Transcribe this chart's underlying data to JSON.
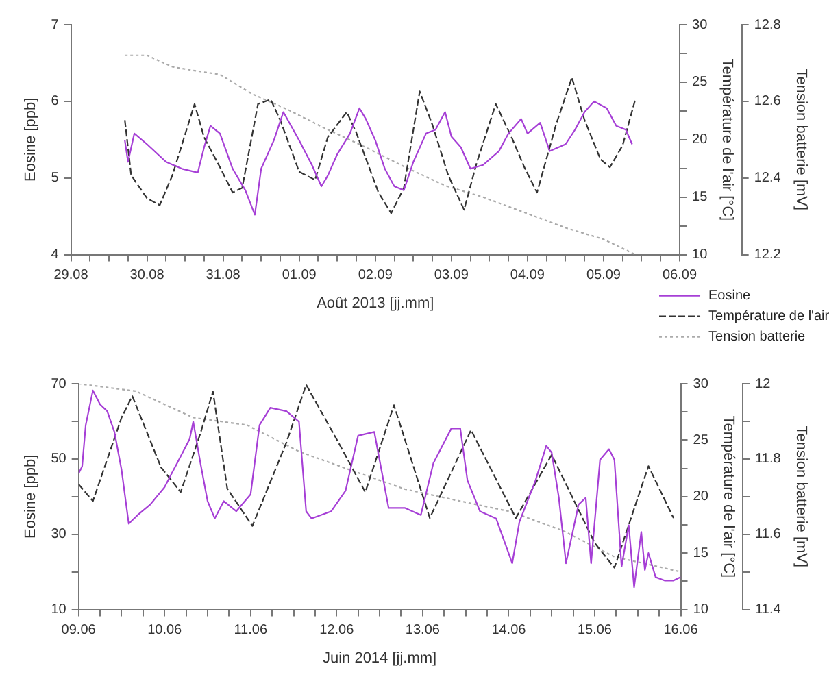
{
  "chart_data": [
    {
      "type": "line",
      "xlabel": "Août 2013 [jj.mm]",
      "ylabel": "Eosine [ppb]",
      "y2label": "Température de l'air [°C]",
      "y3label": "Tension batterie [mV]",
      "xlim": [
        "2013-08-29",
        "2013-09-06"
      ],
      "xticks": [
        {
          "value": "2013-08-29",
          "label": "29.08"
        },
        {
          "value": "2013-08-29T06:00",
          "label": null
        },
        {
          "value": "2013-08-29T12:00",
          "label": null
        },
        {
          "value": "2013-08-29T18:00",
          "label": null
        },
        {
          "value": "2013-08-30",
          "label": "30.08"
        },
        {
          "value": "2013-08-30T06:00",
          "label": null
        },
        {
          "value": "2013-08-30T12:00",
          "label": null
        },
        {
          "value": "2013-08-30T18:00",
          "label": null
        },
        {
          "value": "2013-08-31",
          "label": "31.08"
        },
        {
          "value": "2013-08-31T06:00",
          "label": null
        },
        {
          "value": "2013-08-31T12:00",
          "label": null
        },
        {
          "value": "2013-08-31T18:00",
          "label": null
        },
        {
          "value": "2013-09-01",
          "label": "01.09"
        },
        {
          "value": "2013-09-01T06:00",
          "label": null
        },
        {
          "value": "2013-09-01T12:00",
          "label": null
        },
        {
          "value": "2013-09-01T18:00",
          "label": null
        },
        {
          "value": "2013-09-02",
          "label": "02.09"
        },
        {
          "value": "2013-09-02T06:00",
          "label": null
        },
        {
          "value": "2013-09-02T12:00",
          "label": null
        },
        {
          "value": "2013-09-02T18:00",
          "label": null
        },
        {
          "value": "2013-09-03",
          "label": "03.09"
        },
        {
          "value": "2013-09-03T06:00",
          "label": null
        },
        {
          "value": "2013-09-03T12:00",
          "label": null
        },
        {
          "value": "2013-09-03T18:00",
          "label": null
        },
        {
          "value": "2013-09-04",
          "label": "04.09"
        },
        {
          "value": "2013-09-04T06:00",
          "label": null
        },
        {
          "value": "2013-09-04T12:00",
          "label": null
        },
        {
          "value": "2013-09-04T18:00",
          "label": null
        },
        {
          "value": "2013-09-05",
          "label": "05.09"
        },
        {
          "value": "2013-09-05T06:00",
          "label": null
        },
        {
          "value": "2013-09-05T12:00",
          "label": null
        },
        {
          "value": "2013-09-05T18:00",
          "label": null
        },
        {
          "value": "2013-09-06",
          "label": "06.09"
        }
      ],
      "ylim": [
        4,
        7
      ],
      "yticks": [
        4,
        5,
        6,
        7
      ],
      "y2lim": [
        10,
        30
      ],
      "y2ticks": [
        10,
        {
          "value": 12.5,
          "label": null
        },
        15,
        {
          "value": 17.5,
          "label": null
        },
        20,
        {
          "value": 22.5,
          "label": null
        },
        25,
        {
          "value": 27.5,
          "label": null
        },
        30
      ],
      "y3lim": [
        12.2,
        12.8
      ],
      "y3ticks": [
        12.2,
        12.4,
        12.6,
        12.8
      ],
      "legend": "bottom right",
      "series": [
        {
          "name": "Eosine",
          "color": "#a63fd6",
          "line_style": "solid",
          "x": [
            "2013-08-29T17:00",
            "2013-08-29T18:00",
            "2013-08-29T20:00",
            "2013-08-30T00:00",
            "2013-08-30T06:00",
            "2013-08-30T11:00",
            "2013-08-30T16:00",
            "2013-08-30T18:00",
            "2013-08-30T20:00",
            "2013-08-30T23:00",
            "2013-08-31T03:00",
            "2013-08-31T07:00",
            "2013-08-31T10:00",
            "2013-08-31T12:00",
            "2013-08-31T16:00",
            "2013-08-31T19:00",
            "2013-09-01T00:00",
            "2013-09-01T04:00",
            "2013-09-01T07:00",
            "2013-09-01T09:00",
            "2013-09-01T12:00",
            "2013-09-01T16:00",
            "2013-09-01T19:00",
            "2013-09-01T21:00",
            "2013-09-02T00:00",
            "2013-09-02T03:00",
            "2013-09-02T06:00",
            "2013-09-02T09:00",
            "2013-09-02T12:00",
            "2013-09-02T16:00",
            "2013-09-02T19:00",
            "2013-09-02T22:00",
            "2013-09-03T00:00",
            "2013-09-03T03:00",
            "2013-09-03T06:00",
            "2013-09-03T10:00",
            "2013-09-03T15:00",
            "2013-09-03T18:00",
            "2013-09-03T22:00",
            "2013-09-04T00:00",
            "2013-09-04T04:00",
            "2013-09-04T07:00",
            "2013-09-04T12:00",
            "2013-09-04T15:00",
            "2013-09-04T18:00",
            "2013-09-04T21:00",
            "2013-09-05T01:00",
            "2013-09-05T04:00",
            "2013-09-05T07:00",
            "2013-09-05T09:00"
          ],
          "values": [
            5.49,
            5.21,
            5.58,
            5.44,
            5.21,
            5.12,
            5.07,
            5.4,
            5.68,
            5.58,
            5.12,
            4.84,
            4.52,
            5.12,
            5.49,
            5.86,
            5.49,
            5.17,
            4.89,
            5.03,
            5.31,
            5.58,
            5.91,
            5.77,
            5.49,
            5.12,
            4.89,
            4.84,
            5.21,
            5.58,
            5.63,
            5.86,
            5.54,
            5.4,
            5.12,
            5.17,
            5.35,
            5.58,
            5.77,
            5.58,
            5.72,
            5.35,
            5.44,
            5.63,
            5.86,
            6.0,
            5.91,
            5.68,
            5.63,
            5.44
          ]
        },
        {
          "name": "Température de l'air",
          "color": "#333333",
          "line_style": "dashed",
          "axis": "y2",
          "x": [
            "2013-08-29T17:00",
            "2013-08-29T19:00",
            "2013-08-30T00:00",
            "2013-08-30T04:00",
            "2013-08-30T08:00",
            "2013-08-30T15:00",
            "2013-08-30T18:00",
            "2013-08-30T23:00",
            "2013-08-31T03:00",
            "2013-08-31T06:00",
            "2013-08-31T11:00",
            "2013-08-31T15:00",
            "2013-08-31T18:00",
            "2013-09-01T00:00",
            "2013-09-01T05:00",
            "2013-09-01T09:00",
            "2013-09-01T15:00",
            "2013-09-01T18:00",
            "2013-09-02T01:00",
            "2013-09-02T05:00",
            "2013-09-02T09:00",
            "2013-09-02T14:00",
            "2013-09-02T18:00",
            "2013-09-02T23:00",
            "2013-09-03T04:00",
            "2013-09-03T08:00",
            "2013-09-03T14:00",
            "2013-09-03T19:00",
            "2013-09-03T23:00",
            "2013-09-04T03:00",
            "2013-09-04T09:00",
            "2013-09-04T14:00",
            "2013-09-04T18:00",
            "2013-09-04T23:00",
            "2013-09-05T02:00",
            "2013-09-05T06:00",
            "2013-09-05T10:00"
          ],
          "values": [
            21.7,
            16.9,
            14.9,
            14.3,
            16.9,
            23.1,
            20.2,
            17.6,
            15.4,
            15.8,
            23.1,
            23.5,
            21.7,
            17.2,
            16.5,
            20.2,
            22.4,
            20.6,
            15.4,
            13.6,
            15.8,
            24.2,
            21.3,
            16.9,
            13.9,
            18.0,
            23.1,
            20.2,
            17.6,
            15.4,
            21.3,
            25.4,
            21.7,
            18.3,
            17.6,
            19.5,
            23.5
          ]
        },
        {
          "name": "Tension batterie",
          "color": "#aaaaaa",
          "line_style": "dotted",
          "axis": "y3",
          "x": [
            "2013-08-29T17:00",
            "2013-08-30T00:00",
            "2013-08-30T08:00",
            "2013-08-30T15:00",
            "2013-08-30T23:00",
            "2013-08-31T09:00",
            "2013-08-31T20:00",
            "2013-09-01T08:00",
            "2013-09-01T21:00",
            "2013-09-02T09:00",
            "2013-09-02T22:00",
            "2013-09-03T10:00",
            "2013-09-03T23:00",
            "2013-09-04T12:00",
            "2013-09-05T00:00",
            "2013-09-05T10:00"
          ],
          "values": [
            12.72,
            12.72,
            12.69,
            12.68,
            12.67,
            12.62,
            12.58,
            12.53,
            12.48,
            12.43,
            12.38,
            12.35,
            12.31,
            12.27,
            12.24,
            12.2
          ]
        }
      ]
    },
    {
      "type": "line",
      "xlabel": "Juin 2014 [jj.mm]",
      "ylabel": "Eosine [ppb]",
      "y2label": "Température de l'air [°C]",
      "y3label": "Tension batterie [mV]",
      "xlim": [
        "2014-06-09",
        "2014-06-16"
      ],
      "xticks": [
        {
          "value": "2014-06-09",
          "label": "09.06"
        },
        {
          "value": "2014-06-09T06:00",
          "label": null
        },
        {
          "value": "2014-06-09T12:00",
          "label": null
        },
        {
          "value": "2014-06-09T18:00",
          "label": null
        },
        {
          "value": "2014-06-10",
          "label": "10.06"
        },
        {
          "value": "2014-06-10T06:00",
          "label": null
        },
        {
          "value": "2014-06-10T12:00",
          "label": null
        },
        {
          "value": "2014-06-10T18:00",
          "label": null
        },
        {
          "value": "2014-06-11",
          "label": "11.06"
        },
        {
          "value": "2014-06-11T06:00",
          "label": null
        },
        {
          "value": "2014-06-11T12:00",
          "label": null
        },
        {
          "value": "2014-06-11T18:00",
          "label": null
        },
        {
          "value": "2014-06-12",
          "label": "12.06"
        },
        {
          "value": "2014-06-12T06:00",
          "label": null
        },
        {
          "value": "2014-06-12T12:00",
          "label": null
        },
        {
          "value": "2014-06-12T18:00",
          "label": null
        },
        {
          "value": "2014-06-13",
          "label": "13.06"
        },
        {
          "value": "2014-06-13T06:00",
          "label": null
        },
        {
          "value": "2014-06-13T12:00",
          "label": null
        },
        {
          "value": "2014-06-13T18:00",
          "label": null
        },
        {
          "value": "2014-06-14",
          "label": "14.06"
        },
        {
          "value": "2014-06-14T06:00",
          "label": null
        },
        {
          "value": "2014-06-14T12:00",
          "label": null
        },
        {
          "value": "2014-06-14T18:00",
          "label": null
        },
        {
          "value": "2014-06-15",
          "label": "15.06"
        },
        {
          "value": "2014-06-15T06:00",
          "label": null
        },
        {
          "value": "2014-06-15T12:00",
          "label": null
        },
        {
          "value": "2014-06-15T18:00",
          "label": null
        },
        {
          "value": "2014-06-16",
          "label": "16.06"
        }
      ],
      "ylim": [
        10,
        70
      ],
      "yticks": [
        10,
        {
          "value": 20,
          "label": null
        },
        30,
        {
          "value": 40,
          "label": null
        },
        50,
        {
          "value": 60,
          "label": null
        },
        70
      ],
      "y2lim": [
        10,
        30
      ],
      "y2ticks": [
        10,
        {
          "value": 12.5,
          "label": null
        },
        15,
        {
          "value": 17.5,
          "label": null
        },
        20,
        {
          "value": 22.5,
          "label": null
        },
        25,
        {
          "value": 27.5,
          "label": null
        },
        30
      ],
      "y3lim": [
        11.4,
        12
      ],
      "y3ticks": [
        11.4,
        {
          "value": 11.5,
          "label": null
        },
        11.6,
        {
          "value": 11.7,
          "label": null
        },
        11.8,
        {
          "value": 11.9,
          "label": null
        },
        12
      ],
      "series": [
        {
          "color": "#a63fd6",
          "line_style": "solid",
          "x": [
            "2014-06-09T00:00",
            "2014-06-09T01:00",
            "2014-06-09T02:00",
            "2014-06-09T04:00",
            "2014-06-09T06:00",
            "2014-06-09T08:00",
            "2014-06-09T10:00",
            "2014-06-09T12:00",
            "2014-06-09T14:00",
            "2014-06-09T16:30",
            "2014-06-09T20:00",
            "2014-06-10T00:00",
            "2014-06-10T03:30",
            "2014-06-10T07:00",
            "2014-06-10T08:00",
            "2014-06-10T10:00",
            "2014-06-10T12:00",
            "2014-06-10T14:00",
            "2014-06-10T16:30",
            "2014-06-10T20:00",
            "2014-06-11T00:00",
            "2014-06-11T02:30",
            "2014-06-11T05:30",
            "2014-06-11T10:00",
            "2014-06-11T13:30",
            "2014-06-11T15:30",
            "2014-06-11T17:00",
            "2014-06-11T22:30",
            "2014-06-12T02:30",
            "2014-06-12T06:00",
            "2014-06-12T10:30",
            "2014-06-12T12:30",
            "2014-06-12T14:30",
            "2014-06-12T19:00",
            "2014-06-12T23:30",
            "2014-06-13T03:00",
            "2014-06-13T08:00",
            "2014-06-13T10:30",
            "2014-06-13T12:30",
            "2014-06-13T16:00",
            "2014-06-13T20:30",
            "2014-06-14T01:00",
            "2014-06-14T03:00",
            "2014-06-14T07:30",
            "2014-06-14T10:30",
            "2014-06-14T12:00",
            "2014-06-14T14:00",
            "2014-06-14T16:00",
            "2014-06-14T19:30",
            "2014-06-14T21:30",
            "2014-06-14T23:00",
            "2014-06-15T01:30",
            "2014-06-15T04:00",
            "2014-06-15T05:30",
            "2014-06-15T07:30",
            "2014-06-15T09:30",
            "2014-06-15T11:00",
            "2014-06-15T13:00",
            "2014-06-15T14:00",
            "2014-06-15T15:00",
            "2014-06-15T17:00",
            "2014-06-15T19:30",
            "2014-06-15T22:00",
            "2014-06-16T00:00"
          ],
          "values": [
            46.1,
            48.0,
            59,
            68.2,
            64.5,
            62.7,
            57.2,
            47.1,
            32.8,
            35.1,
            37.9,
            42.5,
            48.9,
            55.3,
            59.9,
            48.9,
            38.8,
            34.2,
            38.8,
            36.1,
            40.6,
            59,
            63.6,
            62.7,
            59.9,
            36.1,
            34.2,
            36.1,
            41.6,
            56.2,
            57.2,
            47.1,
            37,
            37,
            35.1,
            48.9,
            58.1,
            58.1,
            44.3,
            36.1,
            34.2,
            22.3,
            33.3,
            44.3,
            53.5,
            51.7,
            39.7,
            22.3,
            37.9,
            39.7,
            22.3,
            49.8,
            52.6,
            49.8,
            21.4,
            32.4,
            15.9,
            30.6,
            20.5,
            25.0,
            18.6,
            17.7,
            17.7,
            18.6
          ]
        },
        {
          "color": "#333333",
          "line_style": "dashed",
          "axis": "y2",
          "x": [
            "2014-06-09T00:00",
            "2014-06-09T04:00",
            "2014-06-09T12:00",
            "2014-06-09T15:00",
            "2014-06-09T23:00",
            "2014-06-10T04:30",
            "2014-06-10T10:00",
            "2014-06-10T13:30",
            "2014-06-10T17:30",
            "2014-06-11T00:30",
            "2014-06-11T10:00",
            "2014-06-11T15:30",
            "2014-06-12T00:30",
            "2014-06-12T08:00",
            "2014-06-12T16:00",
            "2014-06-13T02:00",
            "2014-06-13T13:30",
            "2014-06-14T02:00",
            "2014-06-14T12:00",
            "2014-06-15T00:00",
            "2014-06-15T05:30",
            "2014-06-15T15:00",
            "2014-06-15T22:00"
          ],
          "values": [
            21.1,
            19.6,
            27.0,
            28.9,
            22.6,
            20.4,
            25.6,
            29.3,
            20.7,
            17.4,
            24.8,
            29.9,
            24.8,
            20.4,
            28.1,
            18.1,
            25.9,
            18.1,
            23.7,
            15.9,
            13.7,
            22.7,
            18.1
          ]
        },
        {
          "color": "#aaaaaa",
          "line_style": "dotted",
          "axis": "y3",
          "x": [
            "2014-06-09T00:00",
            "2014-06-09T16:00",
            "2014-06-10T08:00",
            "2014-06-10T23:00",
            "2014-06-11T13:30",
            "2014-06-12T04:00",
            "2014-06-12T19:00",
            "2014-06-13T09:30",
            "2014-06-14T00:30",
            "2014-06-14T15:00",
            "2014-06-15T05:30",
            "2014-06-15T15:00",
            "2014-06-16T00:00"
          ],
          "values": [
            12.0,
            11.98,
            11.91,
            11.89,
            11.82,
            11.77,
            11.72,
            11.69,
            11.66,
            11.61,
            11.54,
            11.52,
            11.5
          ]
        }
      ]
    }
  ]
}
